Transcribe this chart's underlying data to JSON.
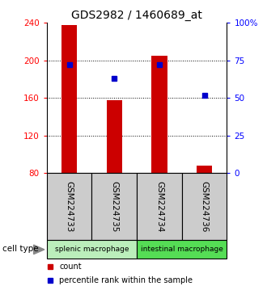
{
  "title": "GDS2982 / 1460689_at",
  "samples": [
    "GSM224733",
    "GSM224735",
    "GSM224734",
    "GSM224736"
  ],
  "bar_bottom": 80,
  "bar_tops": [
    238,
    158,
    205,
    88
  ],
  "percentile_values": [
    72,
    63,
    72,
    52
  ],
  "ylim_left": [
    80,
    240
  ],
  "ylim_right": [
    0,
    100
  ],
  "yticks_left": [
    80,
    120,
    160,
    200,
    240
  ],
  "yticks_right": [
    0,
    25,
    50,
    75,
    100
  ],
  "ytick_labels_right": [
    "0",
    "25",
    "50",
    "75",
    "100%"
  ],
  "gridlines_at": [
    120,
    160,
    200
  ],
  "bar_color": "#cc0000",
  "percentile_color": "#0000cc",
  "groups": [
    {
      "label": "splenic macrophage",
      "indices": [
        0,
        1
      ],
      "color": "#bbeebb"
    },
    {
      "label": "intestinal macrophage",
      "indices": [
        2,
        3
      ],
      "color": "#55dd55"
    }
  ],
  "sample_box_color": "#cccccc",
  "legend_items": [
    {
      "color": "#cc0000",
      "label": "count"
    },
    {
      "color": "#0000cc",
      "label": "percentile rank within the sample"
    }
  ],
  "cell_type_label": "cell type",
  "bar_width": 0.35,
  "title_fontsize": 10,
  "tick_fontsize": 7.5,
  "label_fontsize": 7.5
}
